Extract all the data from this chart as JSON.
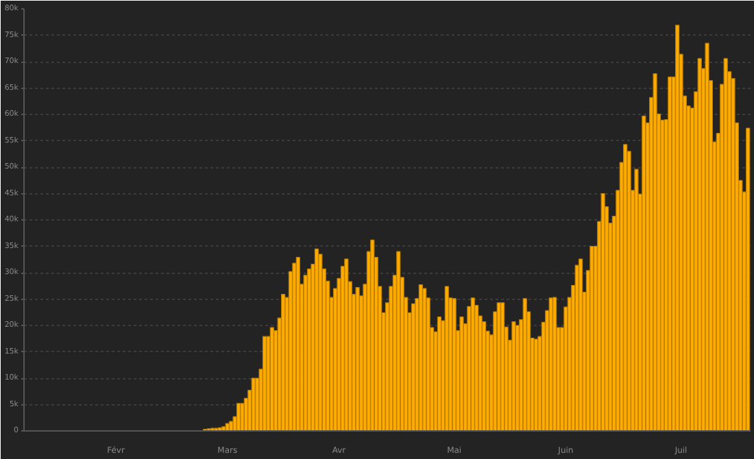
{
  "chart_data": {
    "type": "bar",
    "categories": [
      null,
      null,
      null,
      null,
      null,
      null,
      null,
      null,
      null,
      null,
      null,
      null,
      null,
      null,
      null,
      null,
      null,
      null,
      null,
      null,
      null,
      null,
      null,
      null,
      "Févr",
      null,
      null,
      null,
      null,
      null,
      null,
      null,
      null,
      null,
      null,
      null,
      null,
      null,
      null,
      null,
      null,
      null,
      null,
      null,
      null,
      null,
      null,
      null,
      null,
      null,
      null,
      null,
      null,
      null,
      "Mars",
      null,
      null,
      null,
      null,
      null,
      null,
      null,
      null,
      null,
      null,
      null,
      null,
      null,
      null,
      null,
      null,
      null,
      null,
      null,
      null,
      null,
      null,
      null,
      null,
      null,
      null,
      null,
      null,
      null,
      "Avr",
      null,
      null,
      null,
      null,
      null,
      null,
      null,
      null,
      null,
      null,
      null,
      null,
      null,
      null,
      null,
      null,
      null,
      null,
      null,
      null,
      null,
      null,
      null,
      null,
      null,
      null,
      null,
      null,
      null,
      null,
      "Mai",
      null,
      null,
      null,
      null,
      null,
      null,
      null,
      null,
      null,
      null,
      null,
      null,
      null,
      null,
      null,
      null,
      null,
      null,
      null,
      null,
      null,
      null,
      null,
      null,
      null,
      null,
      null,
      null,
      null,
      "Juin",
      null,
      null,
      null,
      null,
      null,
      null,
      null,
      null,
      null,
      null,
      null,
      null,
      null,
      null,
      null,
      null,
      null,
      null,
      null,
      null,
      null,
      null,
      null,
      null,
      null,
      null,
      null,
      null,
      null,
      null,
      "Juil",
      null,
      null,
      null,
      null,
      null,
      null,
      null,
      null,
      null,
      null,
      null,
      null,
      null,
      null,
      null,
      null,
      null,
      null
    ],
    "values": [
      0,
      0,
      0,
      0,
      0,
      0,
      0,
      0,
      0,
      0,
      0,
      0,
      0,
      0,
      0,
      0,
      0,
      0,
      0,
      0,
      0,
      0,
      0,
      0,
      0,
      0,
      0,
      0,
      0,
      0,
      0,
      0,
      0,
      0,
      0,
      0,
      0,
      0,
      0,
      0,
      0,
      0,
      0,
      0,
      0,
      0,
      0,
      0,
      300,
      400,
      500,
      500,
      600,
      800,
      1400,
      1800,
      2700,
      5200,
      5200,
      6200,
      7700,
      10000,
      10000,
      11700,
      17900,
      17900,
      19600,
      19000,
      21400,
      25900,
      25300,
      30200,
      31800,
      32900,
      27800,
      29500,
      30700,
      31600,
      34500,
      33500,
      30700,
      28400,
      25300,
      27000,
      28900,
      31200,
      32600,
      28300,
      25900,
      27200,
      25600,
      27800,
      34000,
      36200,
      32900,
      27400,
      22400,
      24300,
      27400,
      29500,
      34000,
      29100,
      25300,
      22400,
      24100,
      25100,
      27700,
      27000,
      25200,
      19600,
      18800,
      21600,
      20900,
      27400,
      25200,
      25100,
      19000,
      21600,
      20300,
      23600,
      25200,
      23800,
      21800,
      20700,
      18900,
      18200,
      22600,
      24300,
      24300,
      19700,
      17200,
      20700,
      20000,
      21100,
      25100,
      22600,
      17600,
      17400,
      17900,
      20600,
      22800,
      25200,
      25300,
      19600,
      19600,
      23500,
      25300,
      27600,
      31400,
      32600,
      26300,
      30400,
      35000,
      35000,
      39700,
      45000,
      42500,
      39400,
      40700,
      45600,
      50900,
      54300,
      53000,
      45600,
      49600,
      44900,
      59700,
      58400,
      63200,
      67700,
      60100,
      58900,
      59000,
      67100,
      67100,
      76900,
      71400,
      63500,
      61600,
      61200,
      64300,
      70600,
      68700,
      73500,
      66400,
      54800,
      56400,
      65700,
      70600,
      68100,
      66800,
      58400,
      47500,
      45300,
      57400
    ],
    "color": "#ffab00",
    "ylim": [
      0,
      80000
    ],
    "yticks": [
      0,
      {
        "value": 5000,
        "label": "5k"
      },
      {
        "value": 10000,
        "label": "10k"
      },
      {
        "value": 15000,
        "label": "15k"
      },
      {
        "value": 20000,
        "label": "20k"
      },
      {
        "value": 25000,
        "label": "25k"
      },
      {
        "value": 30000,
        "label": "30k"
      },
      {
        "value": 35000,
        "label": "35k"
      },
      {
        "value": 40000,
        "label": "40k"
      },
      {
        "value": 45000,
        "label": "45k"
      },
      {
        "value": 50000,
        "label": "50k"
      },
      {
        "value": 55000,
        "label": "55k"
      },
      {
        "value": 60000,
        "label": "60k"
      },
      {
        "value": 65000,
        "label": "65k"
      },
      {
        "value": 70000,
        "label": "70k"
      },
      {
        "value": 75000,
        "label": "75k"
      },
      {
        "value": 80000,
        "label": "80k"
      }
    ],
    "grid": "y"
  }
}
